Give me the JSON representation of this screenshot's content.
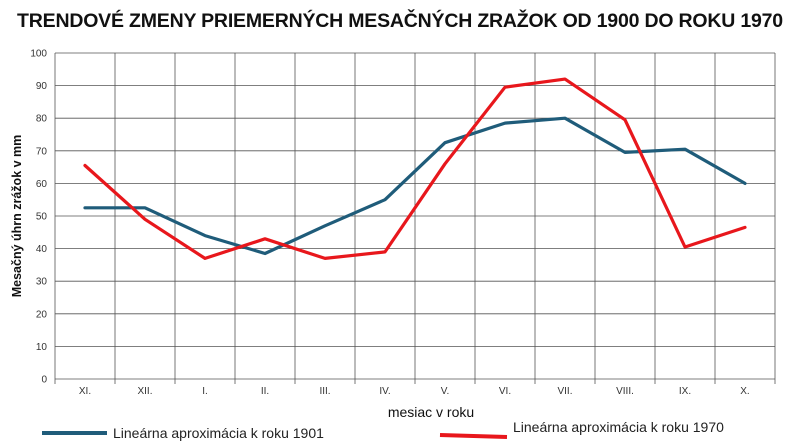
{
  "chart_data": {
    "type": "line",
    "title": "TRENDOVÉ ZMENY PRIEMERNÝCH MESAČNÝCH ZRAŽOK OD 1900 DO ROKU 1970",
    "xlabel": "mesiac v roku",
    "ylabel": "Mesačný úhrn zrážok v mm",
    "categories": [
      "XI.",
      "XII.",
      "I.",
      "II.",
      "III.",
      "IV.",
      "V.",
      "VI.",
      "VII.",
      "VIII.",
      "IX.",
      "X."
    ],
    "ylim": [
      0,
      100
    ],
    "yticks": [
      0,
      10,
      20,
      30,
      40,
      50,
      60,
      70,
      80,
      90,
      100
    ],
    "grid": true,
    "legend_position": "bottom",
    "series": [
      {
        "name": "Lineárna aproximácia k roku 1901",
        "color": "#1f5c7a",
        "values": [
          52.5,
          52.5,
          44,
          38.5,
          47,
          55,
          72.5,
          78.5,
          80,
          69.5,
          70.5,
          60
        ]
      },
      {
        "name": "Lineárna aproximácia k roku 1970",
        "color": "#e8171c",
        "values": [
          65.5,
          49,
          37,
          43,
          37,
          39,
          66,
          89.5,
          92,
          79.5,
          40.5,
          46.5
        ]
      }
    ]
  }
}
